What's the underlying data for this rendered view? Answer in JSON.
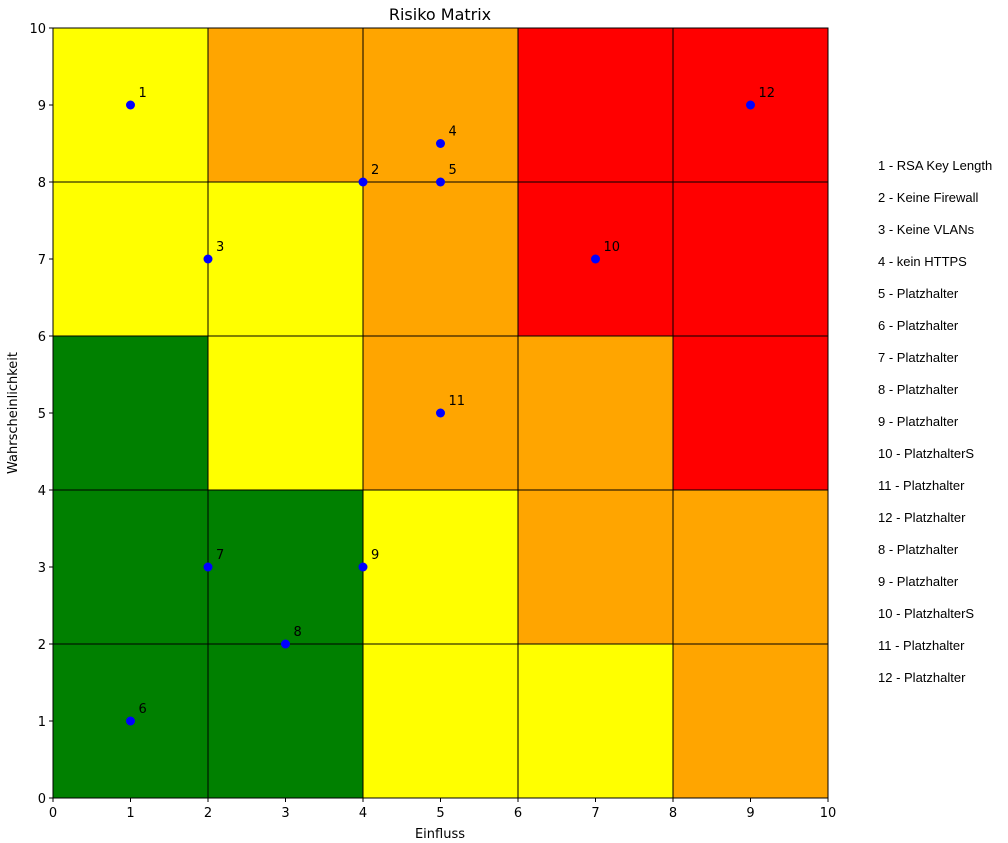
{
  "chart_data": {
    "type": "scatter",
    "title": "Risiko Matrix",
    "xlabel": "Einfluss",
    "ylabel": "Wahrscheinlichkeit",
    "xlim": [
      0,
      10
    ],
    "ylim": [
      0,
      10
    ],
    "xticks": [
      "0",
      "1",
      "2",
      "3",
      "4",
      "5",
      "6",
      "7",
      "8",
      "9",
      "10"
    ],
    "yticks": [
      "0",
      "1",
      "2",
      "3",
      "4",
      "5",
      "6",
      "7",
      "8",
      "9",
      "10"
    ],
    "grid": true,
    "point_color": "#0000ff",
    "cells": {
      "x_edges": [
        0,
        2,
        4,
        6,
        8,
        10
      ],
      "y_edges": [
        0,
        2,
        4,
        6,
        8,
        10
      ],
      "colors_top_to_bottom": [
        [
          "#ffff00",
          "#ffa500",
          "#ffa500",
          "#ff0000",
          "#ff0000"
        ],
        [
          "#ffff00",
          "#ffff00",
          "#ffa500",
          "#ff0000",
          "#ff0000"
        ],
        [
          "#008000",
          "#ffff00",
          "#ffa500",
          "#ffa500",
          "#ff0000"
        ],
        [
          "#008000",
          "#008000",
          "#ffff00",
          "#ffa500",
          "#ffa500"
        ],
        [
          "#008000",
          "#008000",
          "#ffff00",
          "#ffff00",
          "#ffa500"
        ]
      ]
    },
    "points": [
      {
        "label": "1",
        "x": 1,
        "y": 9
      },
      {
        "label": "2",
        "x": 4,
        "y": 8
      },
      {
        "label": "3",
        "x": 2,
        "y": 7
      },
      {
        "label": "4",
        "x": 5,
        "y": 8.5
      },
      {
        "label": "5",
        "x": 5,
        "y": 8
      },
      {
        "label": "6",
        "x": 1,
        "y": 1
      },
      {
        "label": "7",
        "x": 2,
        "y": 3
      },
      {
        "label": "8",
        "x": 3,
        "y": 2
      },
      {
        "label": "9",
        "x": 4,
        "y": 3
      },
      {
        "label": "10",
        "x": 7,
        "y": 7
      },
      {
        "label": "11",
        "x": 5,
        "y": 5
      },
      {
        "label": "12",
        "x": 9,
        "y": 9
      }
    ],
    "legend": [
      "1 - RSA Key Length",
      "2 - Keine Firewall",
      "3 - Keine VLANs",
      "4 - kein HTTPS",
      "5 - Platzhalter",
      "6 - Platzhalter",
      "7 - Platzhalter",
      "8 - Platzhalter",
      "9 - Platzhalter",
      "10 - PlatzhalterS",
      "11 - Platzhalter",
      "12 - Platzhalter",
      "8 - Platzhalter",
      "9 - Platzhalter",
      "10 - PlatzhalterS",
      "11 - Platzhalter",
      "12 - Platzhalter"
    ]
  }
}
